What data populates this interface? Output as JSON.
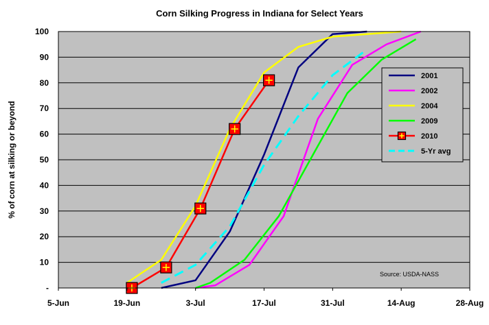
{
  "chart_data": {
    "type": "line",
    "title": "Corn Silking Progress in Indiana for Select Years",
    "ylabel": "% of corn at silking or beyond",
    "xlabel": "",
    "x_ticks": [
      "5-Jun",
      "19-Jun",
      "3-Jul",
      "17-Jul",
      "31-Jul",
      "14-Aug",
      "28-Aug"
    ],
    "y_ticks": [
      "-",
      "10",
      "20",
      "30",
      "40",
      "50",
      "60",
      "70",
      "80",
      "90",
      "100"
    ],
    "xlim": [
      "2010-06-05",
      "2010-08-28"
    ],
    "ylim": [
      0,
      100
    ],
    "grid": "horizontal",
    "legend_position": "right",
    "source_note": "Source: USDA-NASS",
    "colors": {
      "plot_background": "#c0c0c0",
      "grid": "#000000"
    },
    "series": [
      {
        "name": "2001",
        "color": "#000080",
        "style": "solid",
        "points": [
          {
            "x": "2010-06-26",
            "y": 0
          },
          {
            "x": "2010-07-03",
            "y": 3
          },
          {
            "x": "2010-07-10",
            "y": 22
          },
          {
            "x": "2010-07-17",
            "y": 52
          },
          {
            "x": "2010-07-24",
            "y": 86
          },
          {
            "x": "2010-07-31",
            "y": 99
          },
          {
            "x": "2010-08-07",
            "y": 100
          }
        ]
      },
      {
        "name": "2002",
        "color": "#ff00ff",
        "style": "solid",
        "points": [
          {
            "x": "2010-07-03",
            "y": 0
          },
          {
            "x": "2010-07-07",
            "y": 1
          },
          {
            "x": "2010-07-14",
            "y": 9
          },
          {
            "x": "2010-07-21",
            "y": 28
          },
          {
            "x": "2010-07-28",
            "y": 66
          },
          {
            "x": "2010-08-04",
            "y": 87
          },
          {
            "x": "2010-08-11",
            "y": 95
          },
          {
            "x": "2010-08-18",
            "y": 100
          }
        ]
      },
      {
        "name": "2004",
        "color": "#ffff00",
        "style": "solid",
        "points": [
          {
            "x": "2010-06-19",
            "y": 2
          },
          {
            "x": "2010-06-26",
            "y": 11
          },
          {
            "x": "2010-07-03",
            "y": 32
          },
          {
            "x": "2010-07-10",
            "y": 62
          },
          {
            "x": "2010-07-17",
            "y": 84
          },
          {
            "x": "2010-07-24",
            "y": 94
          },
          {
            "x": "2010-07-31",
            "y": 98
          },
          {
            "x": "2010-08-14",
            "y": 100
          }
        ]
      },
      {
        "name": "2009",
        "color": "#00ff00",
        "style": "solid",
        "points": [
          {
            "x": "2010-07-03",
            "y": 0
          },
          {
            "x": "2010-07-06",
            "y": 2
          },
          {
            "x": "2010-07-13",
            "y": 11
          },
          {
            "x": "2010-07-20",
            "y": 28
          },
          {
            "x": "2010-07-27",
            "y": 52
          },
          {
            "x": "2010-08-03",
            "y": 76
          },
          {
            "x": "2010-08-10",
            "y": 89
          },
          {
            "x": "2010-08-17",
            "y": 97
          }
        ]
      },
      {
        "name": "2010",
        "color": "#ff0000",
        "style": "solid",
        "marker": "square-cross",
        "points": [
          {
            "x": "2010-06-20",
            "y": 0
          },
          {
            "x": "2010-06-27",
            "y": 8
          },
          {
            "x": "2010-07-04",
            "y": 31
          },
          {
            "x": "2010-07-11",
            "y": 62
          },
          {
            "x": "2010-07-18",
            "y": 81
          }
        ]
      },
      {
        "name": "5-Yr avg",
        "color": "#00ffff",
        "style": "dashed",
        "points": [
          {
            "x": "2010-06-26",
            "y": 2
          },
          {
            "x": "2010-07-03",
            "y": 9
          },
          {
            "x": "2010-07-10",
            "y": 24
          },
          {
            "x": "2010-07-17",
            "y": 48
          },
          {
            "x": "2010-07-24",
            "y": 67
          },
          {
            "x": "2010-07-31",
            "y": 83
          },
          {
            "x": "2010-08-07",
            "y": 93
          }
        ]
      }
    ]
  }
}
